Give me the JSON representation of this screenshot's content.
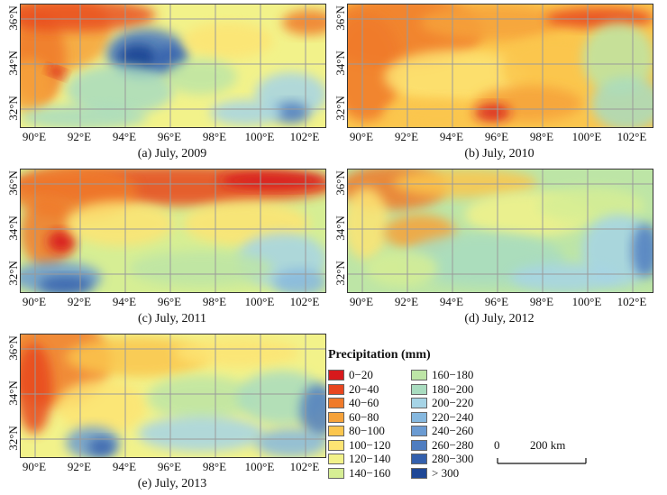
{
  "panels": [
    {
      "caption": "(a) July, 2009",
      "theme": "a"
    },
    {
      "caption": "(b) July, 2010",
      "theme": "b"
    },
    {
      "caption": "(c) July, 2011",
      "theme": "c"
    },
    {
      "caption": "(d) July, 2012",
      "theme": "d"
    },
    {
      "caption": "(e) July, 2013",
      "theme": "e"
    }
  ],
  "lat_labels": [
    "36°N",
    "34°N",
    "32°N"
  ],
  "lon_labels": [
    "90°E",
    "92°E",
    "94°E",
    "96°E",
    "98°E",
    "100°E",
    "102°E"
  ],
  "legend": {
    "title": "Precipitation (mm)",
    "items": [
      {
        "label": "0−20",
        "color": "#d7191c"
      },
      {
        "label": "20−40",
        "color": "#e8461f"
      },
      {
        "label": "40−60",
        "color": "#f07a2a"
      },
      {
        "label": "60−80",
        "color": "#f6a23a"
      },
      {
        "label": "80−100",
        "color": "#fbc64e"
      },
      {
        "label": "100−120",
        "color": "#fde473"
      },
      {
        "label": "120−140",
        "color": "#f2f28a"
      },
      {
        "label": "140−160",
        "color": "#d6ee94"
      },
      {
        "label": "160−180",
        "color": "#bde5a6"
      },
      {
        "label": "180−200",
        "color": "#a9dcc0"
      },
      {
        "label": "200−220",
        "color": "#a6d4e6"
      },
      {
        "label": "220−240",
        "color": "#86b8df"
      },
      {
        "label": "240−260",
        "color": "#6b9bd2"
      },
      {
        "label": "260−280",
        "color": "#4f7dc0"
      },
      {
        "label": "280−300",
        "color": "#3460ad"
      },
      {
        "label": "> 300",
        "color": "#1f4796"
      }
    ]
  },
  "scale": {
    "start": "0",
    "end": "200 km"
  }
}
